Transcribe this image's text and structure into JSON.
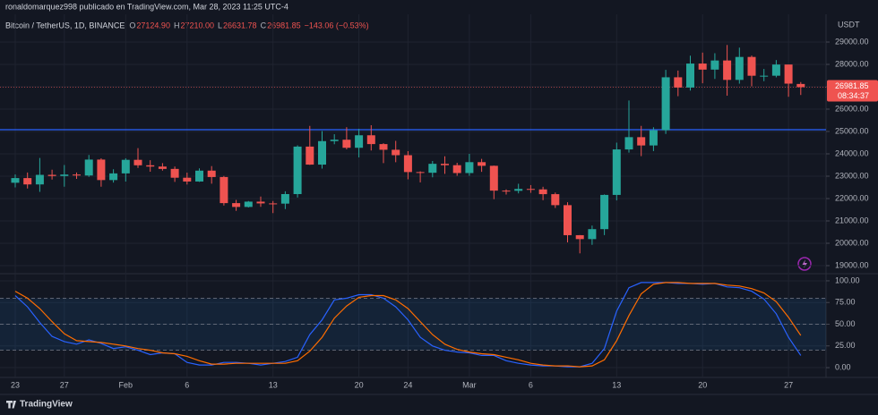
{
  "header": {
    "publisher": "ronaldomarquez998 publicado en TradingView.com, Mar 28, 2023 11:25 UTC-4",
    "footer": "TradingView"
  },
  "chart_data": [
    {
      "type": "candlestick",
      "title": "Bitcoin / TetherUS, 1D, BINANCE",
      "ohlc": [
        {
          "key": "O",
          "text": "27124.90"
        },
        {
          "key": "H",
          "text": "27210.00"
        },
        {
          "key": "L",
          "text": "26631.78"
        },
        {
          "key": "C",
          "text": "26981.85"
        }
      ],
      "change": "−143.06 (−0.53%)",
      "unit": "USDT",
      "countdown": "08:34:37",
      "categories": [
        "23",
        null,
        null,
        null,
        "27",
        null,
        null,
        null,
        null,
        "Feb",
        null,
        null,
        null,
        null,
        "6",
        null,
        null,
        null,
        null,
        null,
        null,
        "13",
        null,
        null,
        null,
        null,
        null,
        null,
        "20",
        null,
        null,
        null,
        "24",
        null,
        null,
        null,
        null,
        "Mar",
        null,
        null,
        null,
        null,
        "6",
        null,
        null,
        null,
        null,
        null,
        null,
        "13",
        null,
        null,
        null,
        null,
        null,
        null,
        "20",
        null,
        null,
        null,
        null,
        null,
        null,
        "27",
        null
      ],
      "open": [
        22707,
        22916,
        22632,
        23060,
        23009,
        23074,
        23031,
        23743,
        22827,
        23125,
        23732,
        23488,
        23431,
        23326,
        22932,
        22762,
        23249,
        22963,
        21796,
        21625,
        21862,
        21783,
        21773,
        22200,
        24324,
        23518,
        24569,
        24631,
        24271,
        24830,
        24436,
        24182,
        23940,
        23185,
        23154,
        23554,
        23492,
        23141,
        23628,
        23465,
        22354,
        22346,
        22430,
        22410,
        22197,
        21705,
        20362,
        20187,
        20632,
        22163,
        24197,
        24746,
        24375,
        25055,
        27423,
        26965,
        28038,
        27767,
        28175,
        27307,
        28333,
        27493,
        27494,
        27994,
        27124.9
      ],
      "high": [
        23078,
        23165,
        23816,
        23290,
        23500,
        23165,
        23950,
        23800,
        23310,
        23800,
        24255,
        23715,
        23585,
        23433,
        23158,
        23350,
        23452,
        23011,
        21940,
        21890,
        22090,
        21890,
        22325,
        24380,
        25250,
        25021,
        24877,
        25192,
        25121,
        25280,
        24477,
        24580,
        24120,
        23219,
        23680,
        23888,
        23600,
        24000,
        23775,
        23476,
        22410,
        22662,
        22603,
        22527,
        22270,
        21834,
        20367,
        20792,
        22185,
        24500,
        26386,
        25250,
        25190,
        27756,
        27724,
        28390,
        28528,
        28500,
        28868,
        28750,
        28397,
        27797,
        28194,
        27994,
        27210
      ],
      "low": [
        22500,
        22450,
        22300,
        22850,
        22530,
        22880,
        22970,
        22530,
        22715,
        22760,
        23370,
        23200,
        23250,
        22745,
        22628,
        22745,
        22665,
        21688,
        21451,
        21600,
        21630,
        21350,
        21530,
        22047,
        23505,
        23339,
        24430,
        24200,
        23840,
        24150,
        23585,
        23625,
        22860,
        22723,
        22950,
        23106,
        23020,
        23020,
        23195,
        21971,
        22180,
        22232,
        22256,
        21927,
        21580,
        20042,
        19549,
        19930,
        20365,
        21918,
        24055,
        23897,
        24123,
        24890,
        26578,
        26830,
        27156,
        27350,
        26601,
        27137,
        27021,
        27250,
        27420,
        26552,
        26631.78
      ],
      "close": [
        22916,
        22632,
        23060,
        23009,
        23074,
        23031,
        23743,
        22827,
        23125,
        23732,
        23488,
        23431,
        23326,
        22932,
        22762,
        23249,
        22963,
        21796,
        21625,
        21862,
        21783,
        21773,
        22200,
        24324,
        23518,
        24569,
        24631,
        24271,
        24830,
        24436,
        24182,
        23940,
        23185,
        23154,
        23554,
        23492,
        23141,
        23628,
        23465,
        22354,
        22346,
        22430,
        22410,
        22197,
        21705,
        20362,
        20187,
        20632,
        22163,
        24197,
        24746,
        24375,
        25055,
        27423,
        26965,
        28038,
        27767,
        28175,
        27307,
        28333,
        27493,
        27494,
        27994,
        27140,
        26981.85
      ],
      "up_color": "#26a69a",
      "down_color": "#ef5350",
      "hlines": [
        25080
      ],
      "hline_color": "#2962ff",
      "last_price": 26981.85,
      "ylim": [
        18680,
        30160
      ],
      "yticks": [
        {
          "value": 19000,
          "label": "19000.00"
        },
        {
          "value": 20000,
          "label": "20000.00"
        },
        {
          "value": 21000,
          "label": "21000.00"
        },
        {
          "value": 22000,
          "label": "22000.00"
        },
        {
          "value": 23000,
          "label": "23000.00"
        },
        {
          "value": 24000,
          "label": "24000.00"
        },
        {
          "value": 25000,
          "label": "25000.00"
        },
        {
          "value": 26000,
          "label": "26000.00"
        },
        {
          "value": 27000,
          "label": "27000.00"
        },
        {
          "value": 28000,
          "label": "28000.00"
        },
        {
          "value": 29000,
          "label": "29000.00"
        }
      ],
      "grid": true
    },
    {
      "type": "line",
      "series": [
        {
          "color": "#2962ff",
          "values": [
            83,
            70,
            52,
            36,
            30,
            27,
            32,
            28,
            22,
            24,
            20,
            15,
            17,
            16,
            6,
            3,
            3,
            6,
            6,
            5,
            3,
            5,
            7,
            12,
            38,
            55,
            78,
            80,
            84,
            84,
            80,
            70,
            55,
            35,
            25,
            20,
            18,
            17,
            14,
            14,
            8,
            5,
            3,
            2,
            2,
            1,
            1,
            5,
            22,
            65,
            92,
            98,
            98,
            98,
            97,
            97,
            96,
            97,
            93,
            92,
            88,
            79,
            62,
            35,
            14
          ]
        },
        {
          "color": "#ff6d00",
          "values": [
            88,
            80,
            68,
            53,
            39,
            31,
            30,
            29,
            27,
            25,
            22,
            20,
            17,
            16,
            13,
            8,
            4,
            4,
            5,
            5,
            5,
            5,
            5,
            8,
            19,
            35,
            57,
            71,
            81,
            83,
            83,
            78,
            68,
            53,
            38,
            27,
            21,
            18,
            16,
            15,
            12,
            9,
            5,
            3,
            2,
            2,
            1,
            2,
            9,
            31,
            60,
            85,
            96,
            98,
            98,
            97,
            97,
            97,
            95,
            94,
            91,
            86,
            76,
            58,
            37
          ]
        }
      ],
      "levels": [
        80,
        50,
        20
      ],
      "band": [
        20,
        80
      ],
      "ylim": [
        -11.3,
        108.2
      ],
      "yticks": [
        {
          "value": 0,
          "label": "0.00"
        },
        {
          "value": 25,
          "label": "25.00"
        },
        {
          "value": 50,
          "label": "50.00"
        },
        {
          "value": 75,
          "label": "75.00"
        },
        {
          "value": 100,
          "label": "100.00"
        }
      ],
      "grid": true
    }
  ]
}
